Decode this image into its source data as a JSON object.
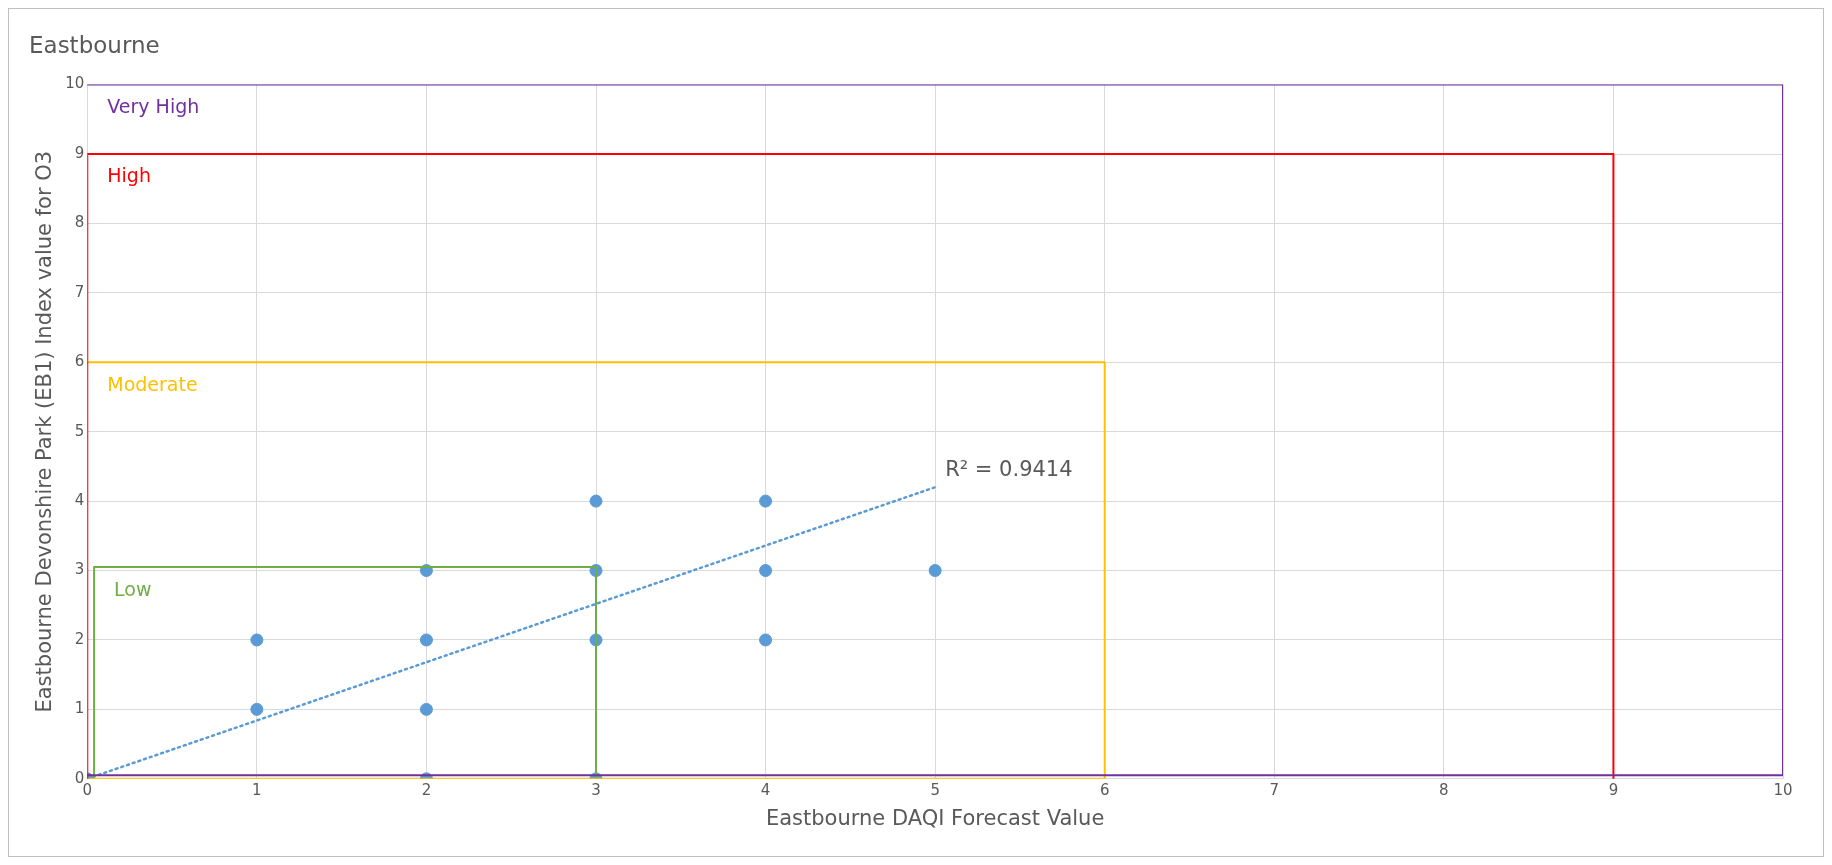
{
  "chart_data": {
    "type": "scatter",
    "title": "Eastbourne",
    "xlabel": "Eastbourne DAQI Forecast Value",
    "ylabel": "Eastbourne Devonshire Park (EB1) Index value for O3",
    "xlim": [
      0,
      10
    ],
    "xticks": [
      0,
      1,
      2,
      3,
      4,
      5,
      6,
      7,
      8,
      9,
      10
    ],
    "ylim": [
      0,
      10
    ],
    "yticks": [
      0,
      1,
      2,
      3,
      4,
      5,
      6,
      7,
      8,
      9,
      10
    ],
    "grid": true,
    "legend": false,
    "series": [
      {
        "type": "line",
        "name": "Very High",
        "color": "#7030a0",
        "marker": "none",
        "line_style": "solid",
        "x": [
          0,
          10,
          10,
          0
        ],
        "values": [
          10,
          10,
          0.05,
          0.05
        ]
      },
      {
        "type": "line",
        "name": "High",
        "color": "#ff0000",
        "marker": "none",
        "line_style": "solid",
        "x": [
          0,
          0,
          9,
          9
        ],
        "values": [
          0,
          9,
          9,
          0
        ]
      },
      {
        "type": "line",
        "name": "Moderate",
        "color": "#ffc000",
        "marker": "none",
        "line_style": "solid",
        "x": [
          0,
          6,
          6,
          0
        ],
        "values": [
          6,
          6,
          0,
          0
        ]
      },
      {
        "type": "line",
        "name": "Low",
        "color": "#70ad47",
        "marker": "none",
        "line_style": "solid",
        "x": [
          0.04,
          0.04,
          3,
          3
        ],
        "values": [
          0,
          3.05,
          3.05,
          0
        ]
      },
      {
        "color": "#5b9bd5",
        "marker": "circle",
        "x": [
          0,
          1,
          1,
          2,
          2,
          2,
          2,
          3,
          3,
          3,
          3,
          4,
          4,
          4,
          5
        ],
        "values": [
          0,
          1,
          2,
          0,
          1,
          2,
          3,
          0,
          2,
          3,
          4,
          2,
          3,
          4,
          3
        ]
      },
      {
        "type": "line",
        "color": "#5b9bd5",
        "marker": "none",
        "line_style": "dotted",
        "x": [
          0,
          5
        ],
        "values": [
          0,
          4.2
        ]
      }
    ],
    "annotations": [
      {
        "text": "R² = 0.9414",
        "x": 5,
        "y": 4.2
      }
    ]
  }
}
